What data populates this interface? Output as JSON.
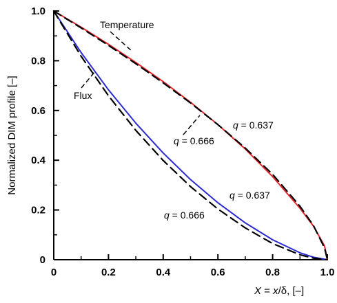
{
  "chart_data": {
    "type": "line",
    "xlabel": "X = x/δ, [–]",
    "xlabel_parts": {
      "var": "X",
      "eq": " = ",
      "expr_var": "x",
      "expr_rest": "/δ, [–]"
    },
    "ylabel": "Normalized DIM profile [–]",
    "xlim": [
      0,
      1
    ],
    "ylim": [
      0,
      1
    ],
    "xticks": [
      "0",
      "0.2",
      "0.4",
      "0.6",
      "0.8",
      "1.0"
    ],
    "yticks": [
      "0",
      "0.2",
      "0.4",
      "0.6",
      "0.8",
      "1.0"
    ],
    "grid": false,
    "series": [
      {
        "name": "Temperature",
        "color": "#e8262a",
        "style": "solid",
        "x": [
          0,
          0.1,
          0.2,
          0.3,
          0.4,
          0.5,
          0.6,
          0.7,
          0.8,
          0.9,
          0.95,
          0.99,
          1.0
        ],
        "y": [
          1.0,
          0.935,
          0.866,
          0.793,
          0.716,
          0.633,
          0.543,
          0.445,
          0.334,
          0.207,
          0.134,
          0.055,
          0.0
        ]
      },
      {
        "name": "Temperature q = 0.666",
        "color": "#000000",
        "style": "dashed",
        "x": [
          0,
          0.1,
          0.2,
          0.3,
          0.4,
          0.5,
          0.6,
          0.7,
          0.8,
          0.9,
          0.95,
          0.99,
          1.0
        ],
        "y": [
          1.0,
          0.932,
          0.862,
          0.788,
          0.711,
          0.63,
          0.543,
          0.449,
          0.343,
          0.215,
          0.136,
          0.047,
          0.0
        ]
      },
      {
        "name": "Flux",
        "color": "#2a2ad0",
        "style": "solid",
        "x": [
          0,
          0.1,
          0.2,
          0.3,
          0.4,
          0.5,
          0.6,
          0.7,
          0.8,
          0.9,
          0.95,
          1.0
        ],
        "y": [
          1.0,
          0.833,
          0.683,
          0.549,
          0.429,
          0.322,
          0.229,
          0.148,
          0.08,
          0.028,
          0.01,
          0.0
        ]
      },
      {
        "name": "Flux q = 0.637",
        "color": "#000000",
        "style": "dashed",
        "x": [
          0,
          0.1,
          0.2,
          0.3,
          0.4,
          0.5,
          0.6,
          0.7,
          0.8,
          0.9,
          0.95,
          1.0
        ],
        "y": [
          1.0,
          0.818,
          0.659,
          0.52,
          0.399,
          0.294,
          0.204,
          0.128,
          0.065,
          0.02,
          0.006,
          0.0
        ]
      }
    ],
    "annotations": [
      {
        "id": "label-temperature",
        "text": "Temperature"
      },
      {
        "id": "label-flux",
        "text": "Flux"
      },
      {
        "id": "temp-q637",
        "q": "q",
        "rest": " = 0.637"
      },
      {
        "id": "temp-q666",
        "q": "q",
        "rest": " = 0.666"
      },
      {
        "id": "flux-q637",
        "q": "q",
        "rest": " = 0.637"
      },
      {
        "id": "flux-q666",
        "q": "q",
        "rest": " = 0.666"
      }
    ]
  }
}
